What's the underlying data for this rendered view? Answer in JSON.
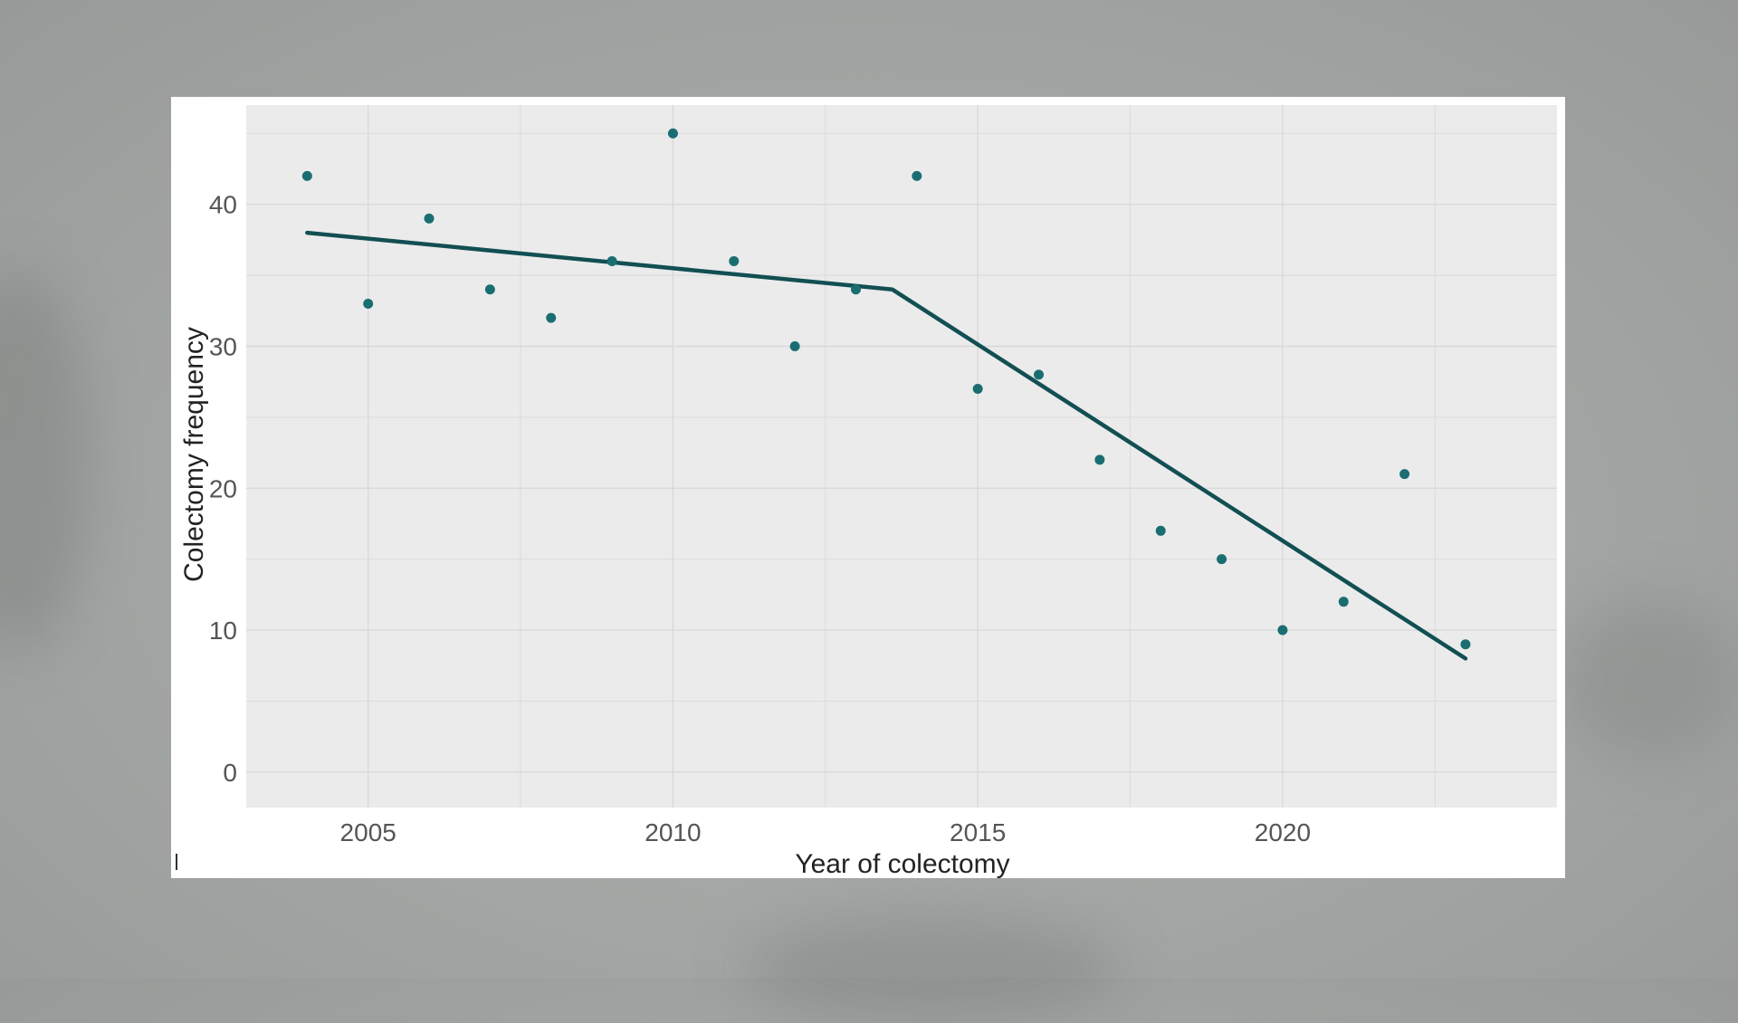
{
  "chart_data": {
    "type": "scatter",
    "title": "",
    "xlabel": "Year of colectomy",
    "ylabel": "Colectomy frequency",
    "xlim": [
      2003,
      2024.5
    ],
    "ylim": [
      -2.5,
      47
    ],
    "x_ticks": [
      2005,
      2010,
      2015,
      2020
    ],
    "y_ticks": [
      0,
      10,
      20,
      30,
      40
    ],
    "grid": true,
    "legend": "none",
    "colors": {
      "points": "#1a6e72",
      "line": "#124f53",
      "panel": "#ebebeb",
      "grid": "#d9d9d9",
      "frame": "#ffffff"
    },
    "series": [
      {
        "type": "points",
        "x": [
          2004,
          2005,
          2006,
          2007,
          2008,
          2009,
          2010,
          2011,
          2012,
          2013,
          2014,
          2015,
          2016,
          2017,
          2018,
          2019,
          2020,
          2021,
          2022,
          2023
        ],
        "y": [
          42,
          33,
          39,
          34,
          32,
          36,
          45,
          36,
          30,
          34,
          42,
          27,
          28,
          22,
          17,
          15,
          10,
          12,
          21,
          9
        ]
      },
      {
        "type": "segmented-fit",
        "x": [
          2004,
          2013.6,
          2023
        ],
        "y": [
          38,
          34,
          8
        ]
      }
    ]
  }
}
